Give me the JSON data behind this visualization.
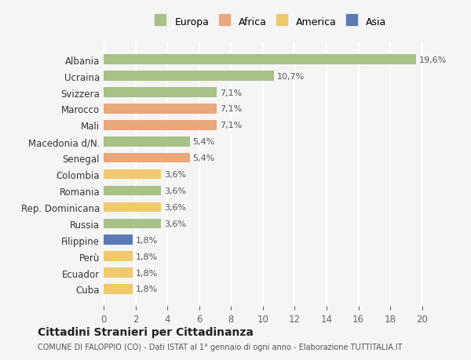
{
  "categories": [
    "Albania",
    "Ucraina",
    "Svizzera",
    "Marocco",
    "Mali",
    "Macedonia d/N.",
    "Senegal",
    "Colombia",
    "Romania",
    "Rep. Dominicana",
    "Russia",
    "Filippine",
    "Perù",
    "Ecuador",
    "Cuba"
  ],
  "values": [
    19.6,
    10.7,
    7.1,
    7.1,
    7.1,
    5.4,
    5.4,
    3.6,
    3.6,
    3.6,
    3.6,
    1.8,
    1.8,
    1.8,
    1.8
  ],
  "labels": [
    "19,6%",
    "10,7%",
    "7,1%",
    "7,1%",
    "7,1%",
    "5,4%",
    "5,4%",
    "3,6%",
    "3,6%",
    "3,6%",
    "3,6%",
    "1,8%",
    "1,8%",
    "1,8%",
    "1,8%"
  ],
  "continents": [
    "Europa",
    "Europa",
    "Europa",
    "Africa",
    "Africa",
    "Europa",
    "Africa",
    "America",
    "Europa",
    "America",
    "Europa",
    "Asia",
    "America",
    "America",
    "America"
  ],
  "colors": {
    "Europa": "#a8c187",
    "Africa": "#e8a87c",
    "America": "#f0c96e",
    "Asia": "#5b7ab5"
  },
  "legend_order": [
    "Europa",
    "Africa",
    "America",
    "Asia"
  ],
  "title": "Cittadini Stranieri per Cittadinanza",
  "subtitle": "COMUNE DI FALOPPIO (CO) - Dati ISTAT al 1° gennaio di ogni anno - Elaborazione TUTTITALIA.IT",
  "xlim": [
    0,
    21
  ],
  "xticks": [
    0,
    2,
    4,
    6,
    8,
    10,
    12,
    14,
    16,
    18,
    20
  ],
  "background_color": "#f5f5f5",
  "grid_color": "#ffffff",
  "bar_height": 0.6
}
